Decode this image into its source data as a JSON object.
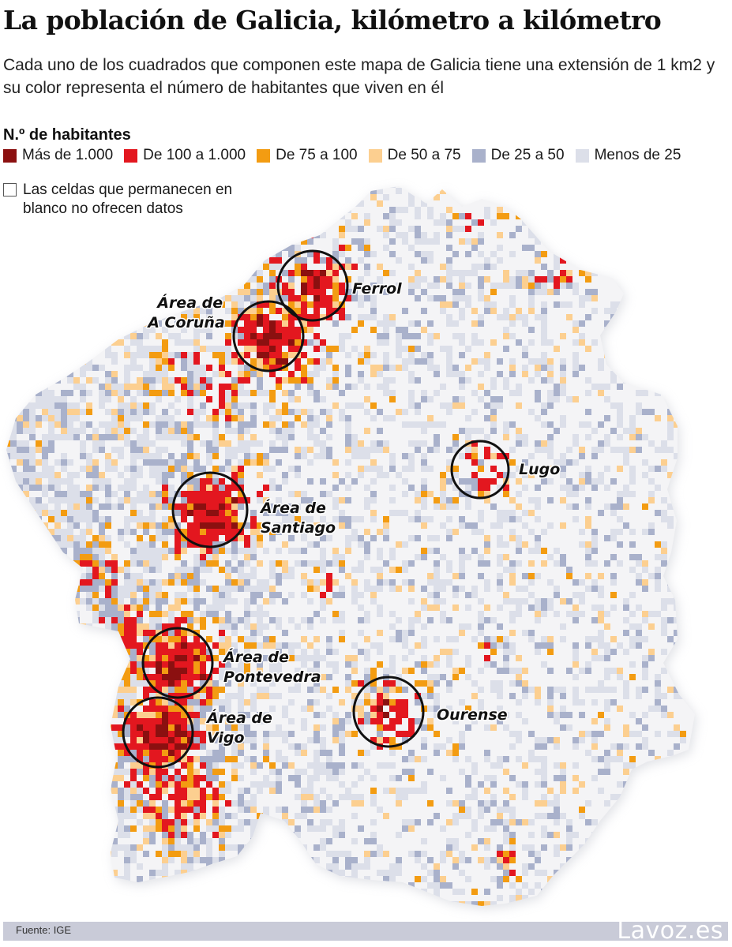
{
  "header": {
    "title": "La población de Galicia, kilómetro a kilómetro",
    "subtitle": "Cada uno de los cuadrados que componen este mapa de Galicia tiene una extensión de 1 km2 y su color representa el número de habitantes que viven en él"
  },
  "legend": {
    "title": "N.º de habitantes",
    "items": [
      {
        "label": "Más de 1.000",
        "color": "#8b1010"
      },
      {
        "label": "De 100 a 1.000",
        "color": "#e3171f"
      },
      {
        "label": "De 75 a 100",
        "color": "#f39c12"
      },
      {
        "label": "De 50 a 75",
        "color": "#fccf90"
      },
      {
        "label": "De 25 a 50",
        "color": "#a9b1cb"
      },
      {
        "label": "Menos de 25",
        "color": "#dcdfe9"
      }
    ],
    "no_data_label": "Las celdas que permanecen en blanco no ofrecen datos"
  },
  "map": {
    "cities": [
      {
        "key": "ferrol",
        "label": "Ferrol"
      },
      {
        "key": "coruna",
        "label": "Área de A Coruña"
      },
      {
        "key": "lugo",
        "label": "Lugo"
      },
      {
        "key": "santiago",
        "label": "Área de Santiago"
      },
      {
        "key": "pontevedra",
        "label": "Área de Pontevedra"
      },
      {
        "key": "vigo",
        "label": "Área de Vigo"
      },
      {
        "key": "ourense",
        "label": "Ourense"
      }
    ]
  },
  "footer": {
    "source": "Fuente:  IGE",
    "brand": "Lavoz.es"
  }
}
